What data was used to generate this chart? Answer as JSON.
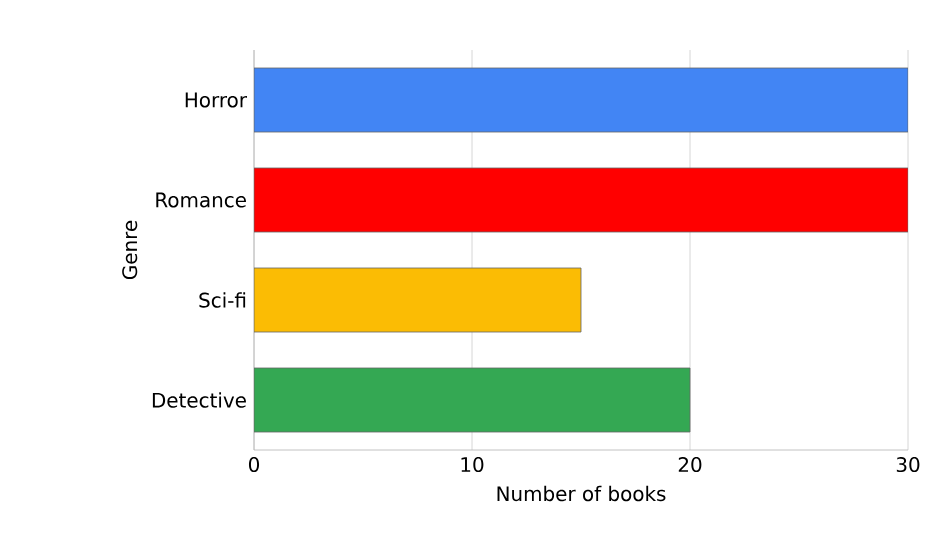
{
  "chart_data": {
    "type": "bar",
    "orientation": "horizontal",
    "xlabel": "Number of books",
    "ylabel": "Genre",
    "categories": [
      "Horror",
      "Romance",
      "Sci-fi",
      "Detective"
    ],
    "values": [
      30,
      30,
      15,
      20
    ],
    "colors": [
      "#4285f4",
      "#ff0000",
      "#fbbc04",
      "#34a853"
    ],
    "xlim": [
      0,
      30
    ],
    "xticks": [
      0,
      10,
      20,
      30
    ],
    "grid": "x"
  }
}
